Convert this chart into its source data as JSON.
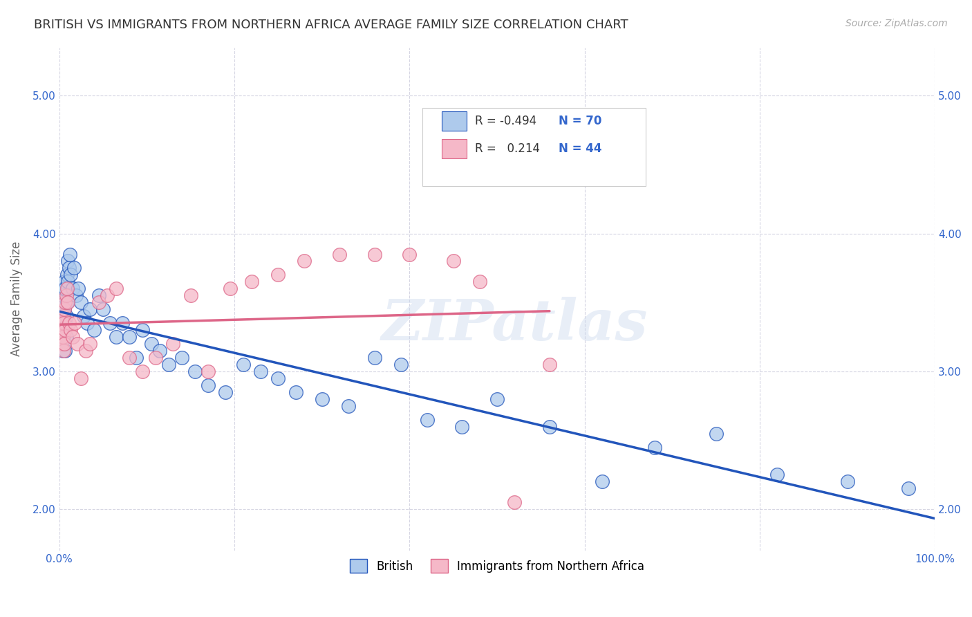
{
  "title": "BRITISH VS IMMIGRANTS FROM NORTHERN AFRICA AVERAGE FAMILY SIZE CORRELATION CHART",
  "source": "Source: ZipAtlas.com",
  "ylabel": "Average Family Size",
  "yticks": [
    2.0,
    3.0,
    4.0,
    5.0
  ],
  "xlim": [
    0.0,
    1.0
  ],
  "ylim": [
    1.7,
    5.35
  ],
  "british_color": "#aecaec",
  "immigrant_color": "#f5b8c8",
  "british_line_color": "#2255bb",
  "immigrant_line_color": "#dd6688",
  "british_R": -0.494,
  "british_N": 70,
  "immigrant_R": 0.214,
  "immigrant_N": 44,
  "watermark": "ZIPatlas",
  "british_x": [
    0.001,
    0.002,
    0.002,
    0.003,
    0.003,
    0.003,
    0.004,
    0.004,
    0.004,
    0.005,
    0.005,
    0.005,
    0.006,
    0.006,
    0.006,
    0.006,
    0.007,
    0.007,
    0.007,
    0.008,
    0.008,
    0.009,
    0.009,
    0.01,
    0.01,
    0.011,
    0.012,
    0.013,
    0.015,
    0.017,
    0.019,
    0.022,
    0.025,
    0.028,
    0.032,
    0.035,
    0.04,
    0.045,
    0.05,
    0.058,
    0.065,
    0.072,
    0.08,
    0.088,
    0.095,
    0.105,
    0.115,
    0.125,
    0.14,
    0.155,
    0.17,
    0.19,
    0.21,
    0.23,
    0.25,
    0.27,
    0.3,
    0.33,
    0.36,
    0.39,
    0.42,
    0.46,
    0.5,
    0.56,
    0.62,
    0.68,
    0.75,
    0.82,
    0.9,
    0.97
  ],
  "british_y": [
    3.3,
    3.25,
    3.45,
    3.2,
    3.35,
    3.5,
    3.15,
    3.3,
    3.55,
    3.25,
    3.4,
    3.6,
    3.2,
    3.3,
    3.45,
    3.65,
    3.15,
    3.35,
    3.6,
    3.25,
    3.4,
    3.7,
    3.5,
    3.8,
    3.65,
    3.75,
    3.85,
    3.7,
    3.6,
    3.75,
    3.55,
    3.6,
    3.5,
    3.4,
    3.35,
    3.45,
    3.3,
    3.55,
    3.45,
    3.35,
    3.25,
    3.35,
    3.25,
    3.1,
    3.3,
    3.2,
    3.15,
    3.05,
    3.1,
    3.0,
    2.9,
    2.85,
    3.05,
    3.0,
    2.95,
    2.85,
    2.8,
    2.75,
    3.1,
    3.05,
    2.65,
    2.6,
    2.8,
    2.6,
    2.2,
    2.45,
    2.55,
    2.25,
    2.2,
    2.15
  ],
  "immigrant_x": [
    0.001,
    0.002,
    0.002,
    0.003,
    0.003,
    0.004,
    0.004,
    0.005,
    0.005,
    0.006,
    0.006,
    0.007,
    0.007,
    0.008,
    0.009,
    0.01,
    0.011,
    0.013,
    0.015,
    0.018,
    0.021,
    0.025,
    0.03,
    0.035,
    0.045,
    0.055,
    0.065,
    0.08,
    0.095,
    0.11,
    0.13,
    0.15,
    0.17,
    0.195,
    0.22,
    0.25,
    0.28,
    0.32,
    0.36,
    0.4,
    0.45,
    0.48,
    0.52,
    0.56
  ],
  "immigrant_y": [
    3.3,
    3.25,
    3.35,
    3.2,
    3.3,
    3.25,
    3.4,
    3.15,
    3.35,
    3.2,
    3.45,
    3.3,
    3.5,
    3.55,
    3.6,
    3.5,
    3.35,
    3.3,
    3.25,
    3.35,
    3.2,
    2.95,
    3.15,
    3.2,
    3.5,
    3.55,
    3.6,
    3.1,
    3.0,
    3.1,
    3.2,
    3.55,
    3.0,
    3.6,
    3.65,
    3.7,
    3.8,
    3.85,
    3.85,
    3.85,
    3.8,
    3.65,
    2.05,
    3.05
  ],
  "title_fontsize": 13,
  "source_fontsize": 10,
  "tick_fontsize": 11,
  "ylabel_fontsize": 12
}
